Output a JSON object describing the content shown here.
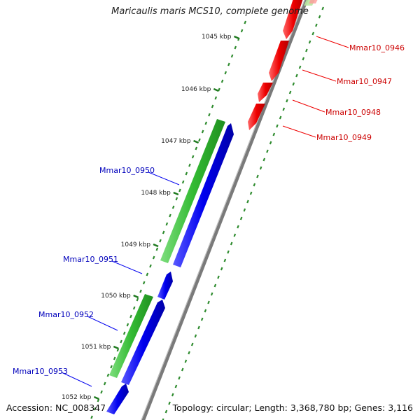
{
  "title": "Maricaulis maris MCS10, complete genome",
  "accession_text": "Accession: NC_008347",
  "summary_text": "Topology: circular; Length: 3,368,780 bp; Genes: 3,116",
  "colors": {
    "backbone": "#7a7a7a",
    "tick_minor": "#2e8b2e",
    "reverse_gene": "#e00000",
    "forward_gene_cds": "#0000ee",
    "forward_gene_bar": "#33bb33",
    "reverse_label": "#cc0000",
    "forward_label": "#0000bb"
  },
  "ticks": [
    {
      "label": "1045 kbp"
    },
    {
      "label": "1046 kbp"
    },
    {
      "label": "1047 kbp"
    },
    {
      "label": "1048 kbp"
    },
    {
      "label": "1049 kbp"
    },
    {
      "label": "1050 kbp"
    },
    {
      "label": "1051 kbp"
    },
    {
      "label": "1052 kbp"
    }
  ],
  "genes": [
    {
      "name": "Mmar10_0946",
      "strand": "reverse"
    },
    {
      "name": "Mmar10_0947",
      "strand": "reverse"
    },
    {
      "name": "Mmar10_0948",
      "strand": "reverse"
    },
    {
      "name": "Mmar10_0949",
      "strand": "reverse"
    },
    {
      "name": "Mmar10_0950",
      "strand": "forward"
    },
    {
      "name": "Mmar10_0951",
      "strand": "forward"
    },
    {
      "name": "Mmar10_0952",
      "strand": "forward"
    },
    {
      "name": "Mmar10_0953",
      "strand": "forward"
    }
  ]
}
